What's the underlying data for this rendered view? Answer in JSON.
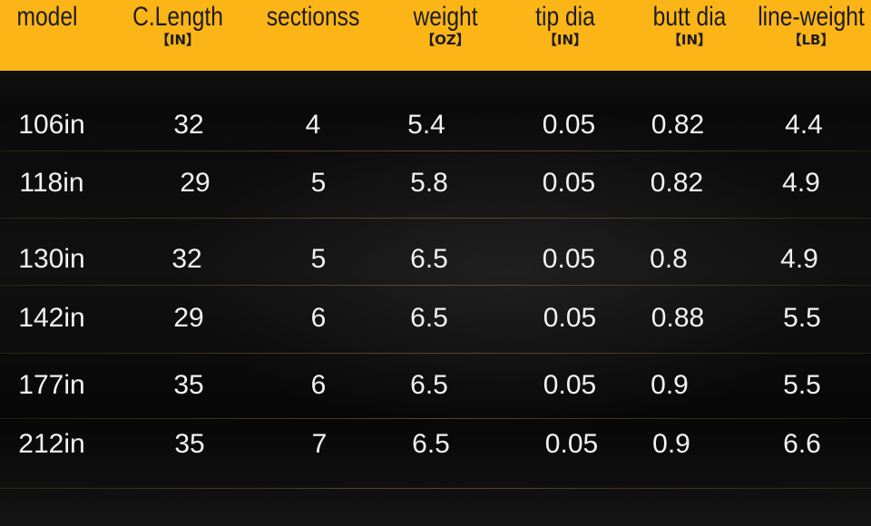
{
  "table": {
    "headers": [
      {
        "title": "model",
        "unit": ""
      },
      {
        "title": "C.Length",
        "unit": "【IN】"
      },
      {
        "title": "sectionss",
        "unit": ""
      },
      {
        "title": "weight",
        "unit": "【OZ】"
      },
      {
        "title": "tip dia",
        "unit": "【IN】"
      },
      {
        "title": "butt dia",
        "unit": "【IN】"
      },
      {
        "title": "line-weight",
        "unit": "【LB】"
      }
    ],
    "rows": [
      [
        "106in",
        "32",
        "4",
        "5.4",
        "0.05",
        "0.82",
        "4.4"
      ],
      [
        "118in",
        "29",
        "5",
        "5.8",
        "0.05",
        "0.82",
        "4.9"
      ],
      [
        "130in",
        "32",
        "5",
        "6.5",
        "0.05",
        "0.8",
        "4.9"
      ],
      [
        "142in",
        "29",
        "6",
        "6.5",
        "0.05",
        "0.88",
        "5.5"
      ],
      [
        "177in",
        "35",
        "6",
        "6.5",
        "0.05",
        "0.9",
        "5.5"
      ],
      [
        "212in",
        "35",
        "7",
        "6.5",
        "0.05",
        "0.9",
        "6.6"
      ]
    ]
  },
  "colors": {
    "header_background": "#fcb517",
    "header_text": "#1c1c1c",
    "cell_text": "#f2f2f2",
    "page_background": "#0b0b0b"
  }
}
